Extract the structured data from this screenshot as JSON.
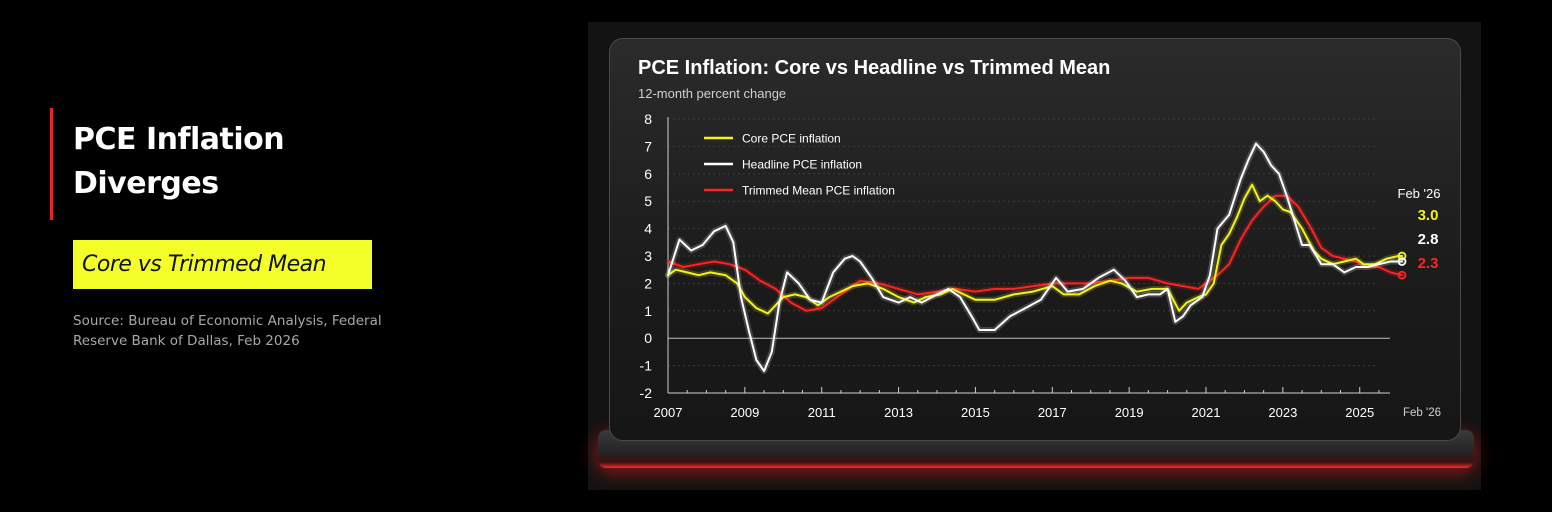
{
  "left": {
    "headline": "PCE Inflation Diverges",
    "tag": "Core vs Trimmed Mean",
    "source": "Source: Bureau of Economic Analysis, Federal Reserve Bank of Dallas, Feb 2026"
  },
  "colors": {
    "accent_red": "#e8232a",
    "tag_yellow": "#f4ff2a",
    "core": "#f2f21c",
    "headline": "#ffffff",
    "trimmed": "#ff2222"
  },
  "chart_data": {
    "type": "line",
    "title": "PCE Inflation: Core vs Headline vs Trimmed Mean",
    "subtitle": "12-month percent change",
    "xlabel": "",
    "ylabel": "",
    "xlim": [
      2007,
      2026.1
    ],
    "ylim": [
      -2,
      8
    ],
    "y_ticks": [
      8,
      7,
      6,
      5,
      4,
      3,
      2,
      1,
      0,
      -1,
      -2
    ],
    "x_ticks": [
      2007,
      2009,
      2011,
      2013,
      2015,
      2017,
      2019,
      2021,
      2023,
      2025
    ],
    "x_end_label": "Feb '26",
    "grid": "horizontal dotted",
    "legend_position": "top-left",
    "endpoint_header": "Feb '26",
    "series": [
      {
        "name": "Core PCE inflation",
        "color": "#f2f21c",
        "end_label": "3.0",
        "x": [
          2007.0,
          2007.2,
          2007.5,
          2007.8,
          2008.1,
          2008.5,
          2008.8,
          2009.0,
          2009.3,
          2009.6,
          2009.8,
          2010.0,
          2010.3,
          2010.6,
          2010.9,
          2011.2,
          2011.5,
          2011.8,
          2012.2,
          2012.6,
          2013.0,
          2013.4,
          2013.7,
          2014.1,
          2014.4,
          2014.7,
          2015.0,
          2015.5,
          2016.0,
          2016.5,
          2017.0,
          2017.3,
          2017.7,
          2018.1,
          2018.5,
          2018.8,
          2019.2,
          2019.6,
          2020.0,
          2020.3,
          2020.5,
          2020.8,
          2021.0,
          2021.2,
          2021.4,
          2021.6,
          2021.8,
          2022.0,
          2022.2,
          2022.4,
          2022.6,
          2022.8,
          2023.0,
          2023.2,
          2023.5,
          2023.8,
          2024.0,
          2024.3,
          2024.6,
          2024.9,
          2025.1,
          2025.4,
          2025.7,
          2026.0,
          2026.1
        ],
        "y": [
          2.3,
          2.5,
          2.4,
          2.3,
          2.4,
          2.3,
          2.0,
          1.5,
          1.1,
          0.9,
          1.2,
          1.5,
          1.6,
          1.5,
          1.2,
          1.5,
          1.7,
          1.9,
          2.0,
          1.8,
          1.5,
          1.3,
          1.5,
          1.6,
          1.8,
          1.6,
          1.4,
          1.4,
          1.6,
          1.7,
          1.9,
          1.6,
          1.6,
          1.9,
          2.1,
          2.0,
          1.7,
          1.8,
          1.8,
          1.0,
          1.3,
          1.5,
          1.6,
          2.0,
          3.4,
          3.8,
          4.4,
          5.1,
          5.6,
          5.0,
          5.2,
          5.0,
          4.7,
          4.6,
          4.0,
          3.2,
          2.9,
          2.7,
          2.8,
          2.9,
          2.7,
          2.7,
          2.9,
          3.0,
          3.0
        ]
      },
      {
        "name": "Headline PCE inflation",
        "color": "#ffffff",
        "end_label": "2.8",
        "x": [
          2007.0,
          2007.3,
          2007.6,
          2007.9,
          2008.2,
          2008.5,
          2008.7,
          2008.9,
          2009.1,
          2009.3,
          2009.5,
          2009.7,
          2009.9,
          2010.1,
          2010.4,
          2010.7,
          2011.0,
          2011.3,
          2011.6,
          2011.8,
          2012.0,
          2012.3,
          2012.6,
          2013.0,
          2013.3,
          2013.6,
          2014.0,
          2014.3,
          2014.6,
          2014.9,
          2015.1,
          2015.5,
          2015.9,
          2016.3,
          2016.7,
          2017.1,
          2017.4,
          2017.8,
          2018.2,
          2018.6,
          2018.9,
          2019.2,
          2019.5,
          2019.8,
          2020.0,
          2020.2,
          2020.4,
          2020.6,
          2020.9,
          2021.1,
          2021.3,
          2021.6,
          2021.9,
          2022.1,
          2022.3,
          2022.5,
          2022.7,
          2022.9,
          2023.1,
          2023.3,
          2023.5,
          2023.7,
          2024.0,
          2024.3,
          2024.6,
          2024.9,
          2025.2,
          2025.5,
          2025.8,
          2026.1
        ],
        "y": [
          2.3,
          3.6,
          3.2,
          3.4,
          3.9,
          4.1,
          3.5,
          1.5,
          0.3,
          -0.8,
          -1.2,
          -0.5,
          1.3,
          2.4,
          2.0,
          1.4,
          1.3,
          2.4,
          2.9,
          3.0,
          2.8,
          2.2,
          1.5,
          1.3,
          1.5,
          1.3,
          1.6,
          1.8,
          1.5,
          0.8,
          0.3,
          0.3,
          0.8,
          1.1,
          1.4,
          2.2,
          1.7,
          1.8,
          2.2,
          2.5,
          2.1,
          1.5,
          1.6,
          1.6,
          1.8,
          0.6,
          0.8,
          1.2,
          1.5,
          2.3,
          4.0,
          4.5,
          5.8,
          6.5,
          7.1,
          6.8,
          6.3,
          6.0,
          5.2,
          4.3,
          3.4,
          3.4,
          2.7,
          2.7,
          2.4,
          2.6,
          2.6,
          2.7,
          2.8,
          2.8
        ]
      },
      {
        "name": "Trimmed Mean PCE inflation",
        "color": "#ff2222",
        "end_label": "2.3",
        "x": [
          2007.0,
          2007.4,
          2007.8,
          2008.2,
          2008.6,
          2009.0,
          2009.4,
          2009.8,
          2010.2,
          2010.6,
          2011.0,
          2011.5,
          2012.0,
          2012.5,
          2013.0,
          2013.5,
          2014.0,
          2014.5,
          2015.0,
          2015.5,
          2016.0,
          2016.5,
          2017.0,
          2017.5,
          2018.0,
          2018.5,
          2019.0,
          2019.5,
          2020.0,
          2020.4,
          2020.8,
          2021.0,
          2021.3,
          2021.6,
          2021.9,
          2022.2,
          2022.5,
          2022.8,
          2023.1,
          2023.4,
          2023.7,
          2024.0,
          2024.3,
          2024.6,
          2024.9,
          2025.2,
          2025.5,
          2025.8,
          2026.1
        ],
        "y": [
          2.8,
          2.6,
          2.7,
          2.8,
          2.7,
          2.5,
          2.1,
          1.8,
          1.3,
          1.0,
          1.1,
          1.6,
          2.1,
          2.0,
          1.8,
          1.6,
          1.7,
          1.8,
          1.7,
          1.8,
          1.8,
          1.9,
          2.0,
          2.0,
          2.0,
          2.1,
          2.2,
          2.2,
          2.0,
          1.9,
          1.8,
          2.0,
          2.3,
          2.7,
          3.6,
          4.3,
          4.8,
          5.2,
          5.2,
          4.8,
          4.1,
          3.3,
          3.0,
          2.9,
          2.8,
          2.6,
          2.6,
          2.4,
          2.3
        ]
      }
    ]
  }
}
